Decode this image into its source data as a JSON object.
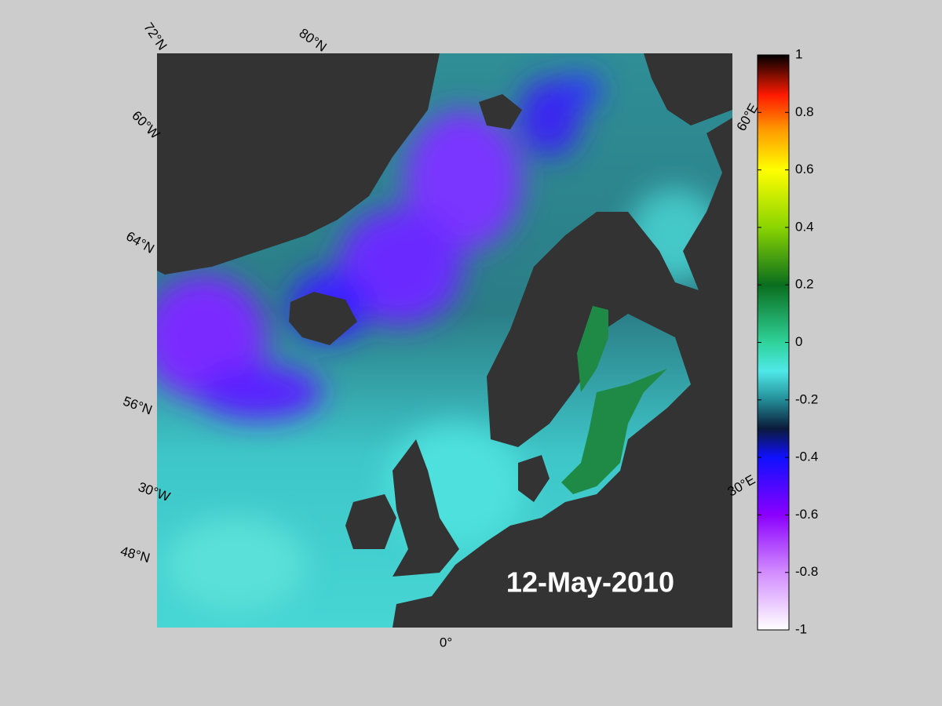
{
  "map": {
    "date_label": "12-May-2010",
    "graticule_labels": [
      "72°N",
      "80°N",
      "60°W",
      "64°N",
      "56°N",
      "30°W",
      "48°N",
      "0°",
      "60°E",
      "30°E"
    ]
  },
  "colorbar": {
    "lim": [
      -1,
      1
    ],
    "ticks": [
      1,
      0.8,
      0.6,
      0.4,
      0.2,
      0,
      -0.2,
      -0.4,
      -0.6,
      -0.8,
      -1
    ]
  }
}
